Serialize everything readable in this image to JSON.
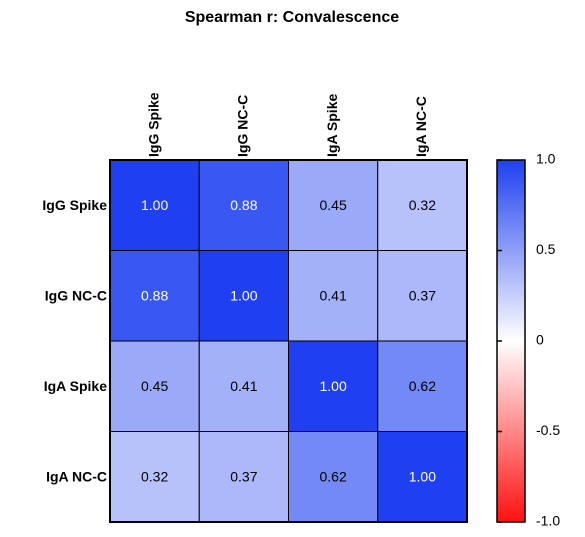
{
  "chart_data": {
    "type": "heatmap",
    "title": "Spearman r: Convalescence",
    "x_categories": [
      "IgG Spike",
      "IgG NC-C",
      "IgA Spike",
      "IgA NC-C"
    ],
    "y_categories": [
      "IgG Spike",
      "IgG NC-C",
      "IgA Spike",
      "IgA NC-C"
    ],
    "values": [
      [
        1.0,
        0.88,
        0.45,
        0.32
      ],
      [
        0.88,
        1.0,
        0.41,
        0.37
      ],
      [
        0.45,
        0.41,
        1.0,
        0.62
      ],
      [
        0.32,
        0.37,
        0.62,
        1.0
      ]
    ],
    "value_labels": [
      [
        "1.00",
        "0.88",
        "0.45",
        "0.32"
      ],
      [
        "0.88",
        "1.00",
        "0.41",
        "0.37"
      ],
      [
        "0.45",
        "0.41",
        "1.00",
        "0.62"
      ],
      [
        "0.32",
        "0.37",
        "0.62",
        "1.00"
      ]
    ],
    "colorbar": {
      "low_color": "#ff1010",
      "mid_color": "#ffffff",
      "high_color": "#1e40f0",
      "lim": [
        -1,
        1
      ],
      "ticks": [
        {
          "value": 1,
          "label": "1.0"
        },
        0.5,
        0,
        -0.5,
        {
          "value": -1,
          "label": "-1.0"
        }
      ]
    }
  }
}
